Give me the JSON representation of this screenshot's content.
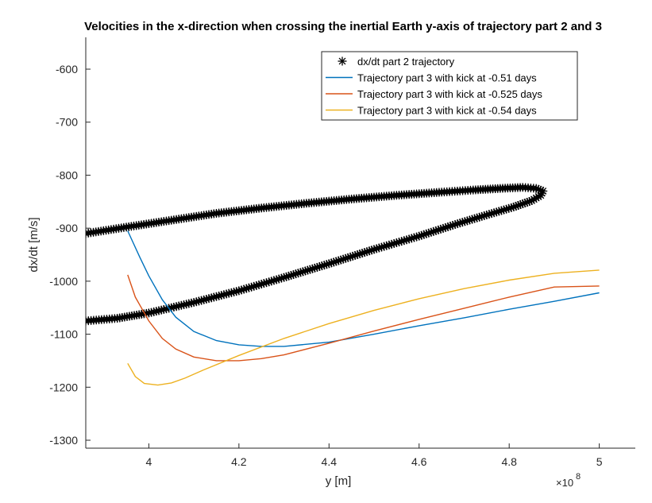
{
  "chart_data": {
    "type": "line",
    "title": "Velocities in the x-direction when crossing the inertial Earth y-axis of trajectory part 2 and 3",
    "xlabel": "y [m]",
    "ylabel": "dx/dt [m/s]",
    "x_exponent_base": "×10",
    "x_exponent_power": "8",
    "xlim": [
      3.86,
      5.08
    ],
    "ylim": [
      -1315,
      -540
    ],
    "x_ticks": [
      4,
      4.2,
      4.4,
      4.6,
      4.8,
      5
    ],
    "x_tick_labels": [
      "4",
      "4.2",
      "4.4",
      "4.6",
      "4.8",
      "5"
    ],
    "y_ticks": [
      -600,
      -700,
      -800,
      -900,
      -1000,
      -1100,
      -1200,
      -1300
    ],
    "y_tick_labels": [
      "-600",
      "-700",
      "-800",
      "-900",
      "-1000",
      "-1100",
      "-1200",
      "-1300"
    ],
    "grid": false,
    "legend_position": "top-right",
    "series": [
      {
        "name": "dx/dt part 2 trajectory",
        "style": "markers",
        "marker": "*",
        "color": "#000000",
        "x": [
          3.86,
          3.95,
          4.05,
          4.15,
          4.25,
          4.35,
          4.45,
          4.55,
          4.65,
          4.72,
          4.78,
          4.83,
          4.86,
          4.875,
          4.87,
          4.85,
          4.81,
          4.75,
          4.68,
          4.6,
          4.5,
          4.4,
          4.3,
          4.2,
          4.1,
          4.0,
          3.93,
          3.86
        ],
        "y": [
          -910,
          -898,
          -885,
          -872,
          -862,
          -853,
          -845,
          -838,
          -832,
          -828,
          -825,
          -823,
          -825,
          -830,
          -838,
          -848,
          -860,
          -875,
          -893,
          -915,
          -940,
          -967,
          -993,
          -1018,
          -1040,
          -1060,
          -1070,
          -1075
        ]
      },
      {
        "name": "Trajectory part 3 with kick at -0.51 days",
        "style": "line",
        "color": "#0072BD",
        "x": [
          3.953,
          3.98,
          4.0,
          4.03,
          4.06,
          4.1,
          4.15,
          4.2,
          4.25,
          4.3,
          4.4,
          4.5,
          4.6,
          4.7,
          4.8,
          4.9,
          5.0
        ],
        "y": [
          -905,
          -955,
          -990,
          -1035,
          -1068,
          -1095,
          -1112,
          -1120,
          -1123,
          -1123,
          -1115,
          -1100,
          -1084,
          -1069,
          -1053,
          -1038,
          -1022
        ]
      },
      {
        "name": "Trajectory part 3 with kick at -0.525 days",
        "style": "line",
        "color": "#D95319",
        "x": [
          3.953,
          3.97,
          4.0,
          4.03,
          4.06,
          4.1,
          4.15,
          4.2,
          4.25,
          4.3,
          4.4,
          4.5,
          4.6,
          4.7,
          4.8,
          4.9,
          5.0
        ],
        "y": [
          -988,
          -1030,
          -1075,
          -1108,
          -1128,
          -1143,
          -1150,
          -1150,
          -1146,
          -1139,
          -1117,
          -1094,
          -1072,
          -1051,
          -1030,
          -1011,
          -1009
        ]
      },
      {
        "name": "Trajectory part 3 with kick at -0.54 days",
        "style": "line",
        "color": "#EDB120",
        "x": [
          3.953,
          3.97,
          3.99,
          4.02,
          4.05,
          4.08,
          4.12,
          4.2,
          4.3,
          4.4,
          4.5,
          4.6,
          4.7,
          4.8,
          4.9,
          5.0
        ],
        "y": [
          -1155,
          -1180,
          -1193,
          -1196,
          -1192,
          -1183,
          -1168,
          -1140,
          -1108,
          -1080,
          -1055,
          -1033,
          -1014,
          -998,
          -985,
          -979
        ]
      }
    ]
  }
}
